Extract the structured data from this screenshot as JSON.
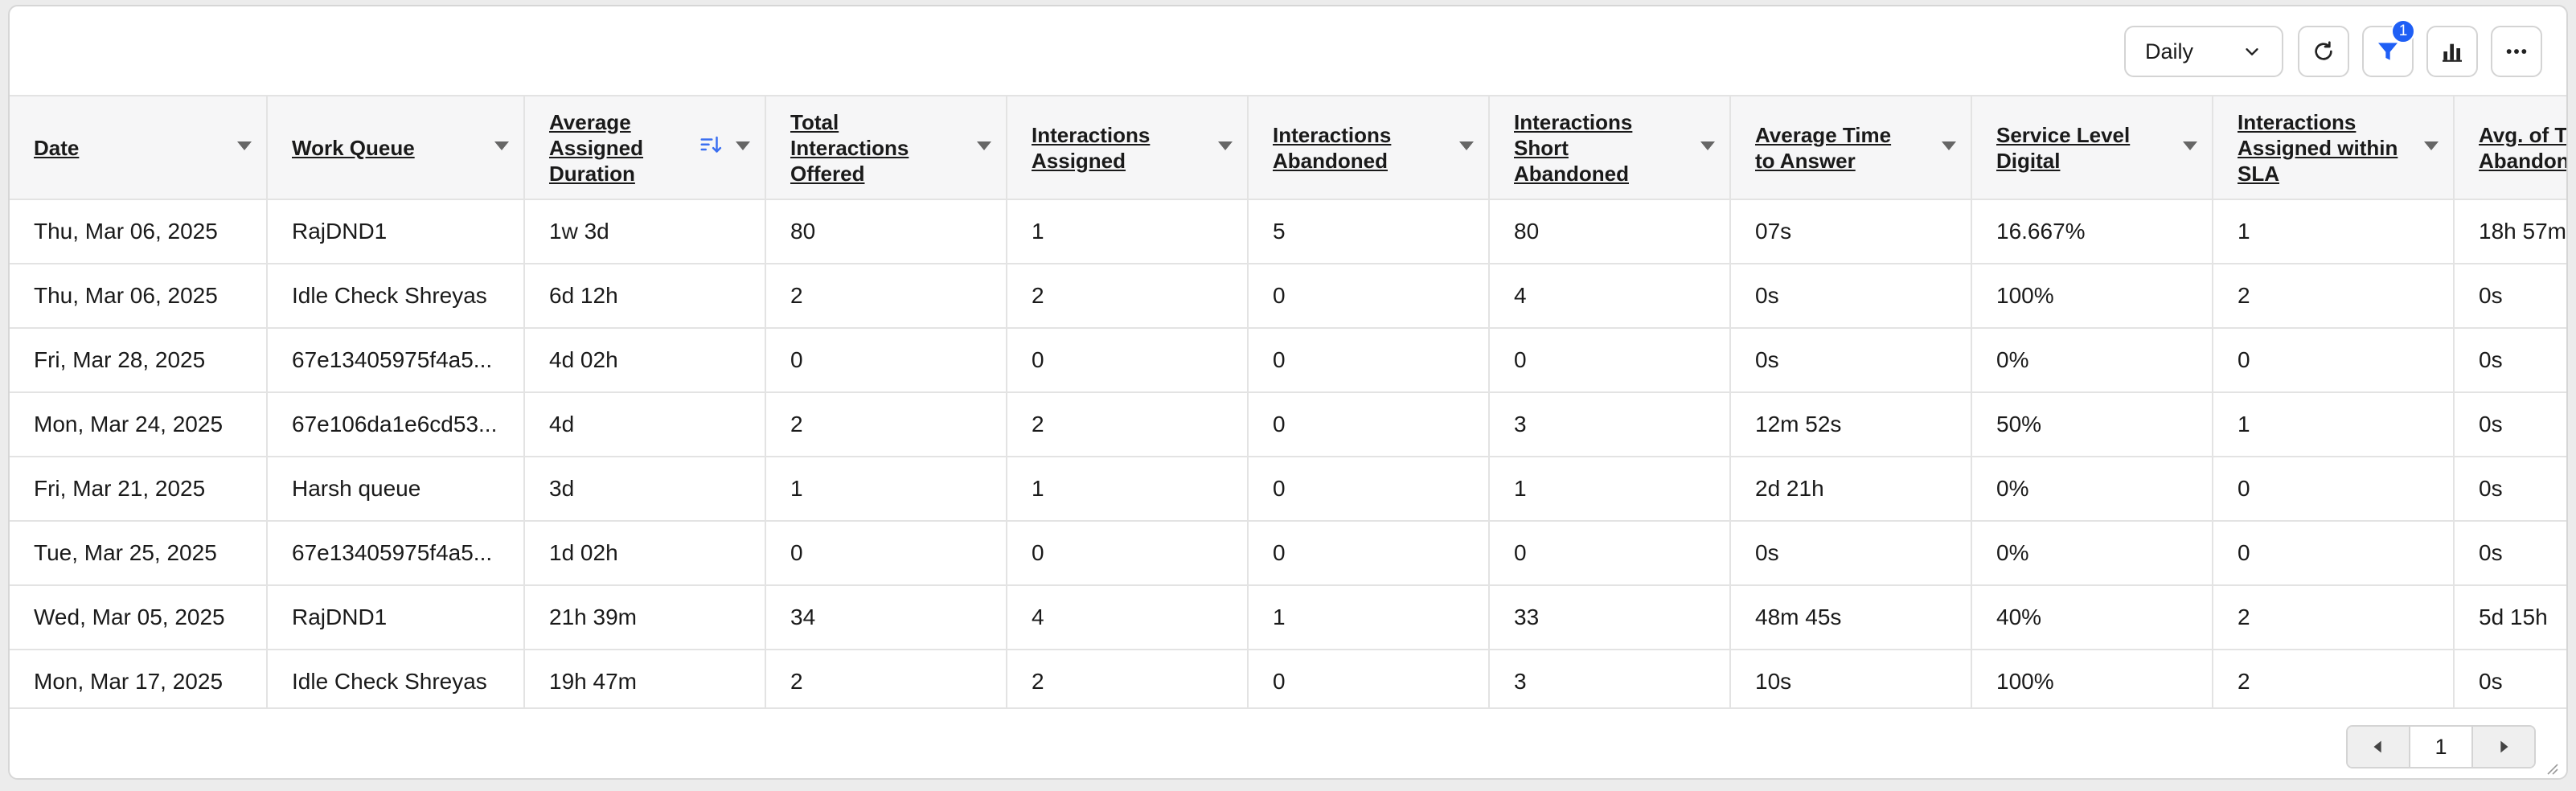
{
  "toolbar": {
    "period_select": "Daily",
    "filter_count": "1"
  },
  "table": {
    "columns": [
      "Date",
      "Work Queue",
      "Average Assigned Duration",
      "Total Interactions Offered",
      "Interactions Assigned",
      "Interactions Abandoned",
      "Interactions Short Abandoned",
      "Average Time to Answer",
      "Service Level Digital",
      "Interactions Assigned within SLA",
      "Avg. of T Abandon"
    ],
    "rows": [
      [
        "Thu, Mar 06, 2025",
        "RajDND1",
        "1w 3d",
        "80",
        "1",
        "5",
        "80",
        "07s",
        "16.667%",
        "1",
        "18h 57m"
      ],
      [
        "Thu, Mar 06, 2025",
        "Idle Check Shreyas",
        "6d 12h",
        "2",
        "2",
        "0",
        "4",
        "0s",
        "100%",
        "2",
        "0s"
      ],
      [
        "Fri, Mar 28, 2025",
        "67e13405975f4a5...",
        "4d 02h",
        "0",
        "0",
        "0",
        "0",
        "0s",
        "0%",
        "0",
        "0s"
      ],
      [
        "Mon, Mar 24, 2025",
        "67e106da1e6cd53...",
        "4d",
        "2",
        "2",
        "0",
        "3",
        "12m 52s",
        "50%",
        "1",
        "0s"
      ],
      [
        "Fri, Mar 21, 2025",
        "Harsh queue",
        "3d",
        "1",
        "1",
        "0",
        "1",
        "2d 21h",
        "0%",
        "0",
        "0s"
      ],
      [
        "Tue, Mar 25, 2025",
        "67e13405975f4a5...",
        "1d 02h",
        "0",
        "0",
        "0",
        "0",
        "0s",
        "0%",
        "0",
        "0s"
      ],
      [
        "Wed, Mar 05, 2025",
        "RajDND1",
        "21h 39m",
        "34",
        "4",
        "1",
        "33",
        "48m 45s",
        "40%",
        "2",
        "5d 15h"
      ],
      [
        "Mon, Mar 17, 2025",
        "Idle Check Shreyas",
        "19h 47m",
        "2",
        "2",
        "0",
        "3",
        "10s",
        "100%",
        "2",
        "0s"
      ]
    ]
  },
  "pagination": {
    "current_page": "1"
  },
  "colors": {
    "accent": "#1f5ff5",
    "header_bg": "#f6f6f7",
    "border": "#e3e3e3"
  }
}
